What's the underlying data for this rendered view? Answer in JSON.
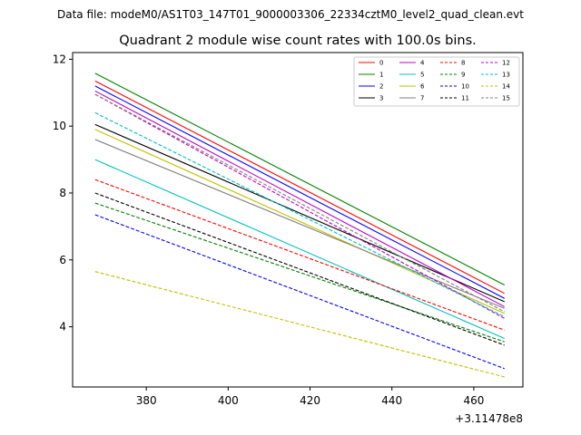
{
  "header": {
    "data_file": "Data file: modeM0/AS1T03_147T01_9000003306_22334cztM0_level2_quad_clean.evt"
  },
  "chart_data": {
    "type": "line",
    "title": "Quadrant 2 module wise count rates with 100.0s bins.",
    "xlabel": "",
    "ylabel": "",
    "x_offset_label": "+3.11478e8",
    "xlim": [
      362,
      472
    ],
    "ylim": [
      2.2,
      12.2
    ],
    "xticks": [
      380,
      400,
      420,
      440,
      460
    ],
    "yticks": [
      4,
      6,
      8,
      10,
      12
    ],
    "x": [
      367.5,
      467.5
    ],
    "grid": false,
    "legend_position": "top-right",
    "series": [
      {
        "name": "0",
        "color": "#ff0000",
        "dash": "solid",
        "values": [
          11.35,
          5.0
        ]
      },
      {
        "name": "1",
        "color": "#008000",
        "dash": "solid",
        "values": [
          11.58,
          5.25
        ]
      },
      {
        "name": "2",
        "color": "#0000ff",
        "dash": "solid",
        "values": [
          11.2,
          4.85
        ]
      },
      {
        "name": "3",
        "color": "#000000",
        "dash": "solid",
        "values": [
          10.05,
          4.75
        ]
      },
      {
        "name": "4",
        "color": "#c000c0",
        "dash": "solid",
        "values": [
          11.05,
          4.6
        ]
      },
      {
        "name": "5",
        "color": "#00c0c0",
        "dash": "solid",
        "values": [
          9.0,
          3.65
        ]
      },
      {
        "name": "6",
        "color": "#c0c000",
        "dash": "solid",
        "values": [
          9.9,
          4.4
        ]
      },
      {
        "name": "7",
        "color": "#808080",
        "dash": "solid",
        "values": [
          9.6,
          4.55
        ]
      },
      {
        "name": "8",
        "color": "#ff0000",
        "dash": "dashed",
        "values": [
          8.4,
          3.9
        ]
      },
      {
        "name": "9",
        "color": "#008000",
        "dash": "dashed",
        "values": [
          7.7,
          3.55
        ]
      },
      {
        "name": "10",
        "color": "#0000ff",
        "dash": "dashed",
        "values": [
          7.35,
          2.75
        ]
      },
      {
        "name": "11",
        "color": "#000000",
        "dash": "dashed",
        "values": [
          8.0,
          3.45
        ]
      },
      {
        "name": "12",
        "color": "#c000c0",
        "dash": "dashed",
        "values": [
          10.95,
          4.25
        ]
      },
      {
        "name": "13",
        "color": "#00c0c0",
        "dash": "dashed",
        "values": [
          10.4,
          4.3
        ]
      },
      {
        "name": "14",
        "color": "#c0c000",
        "dash": "dashed",
        "values": [
          5.65,
          2.5
        ]
      },
      {
        "name": "15",
        "color": "#808080",
        "dash": "dashed",
        "values": [
          10.95,
          4.45
        ]
      }
    ]
  }
}
